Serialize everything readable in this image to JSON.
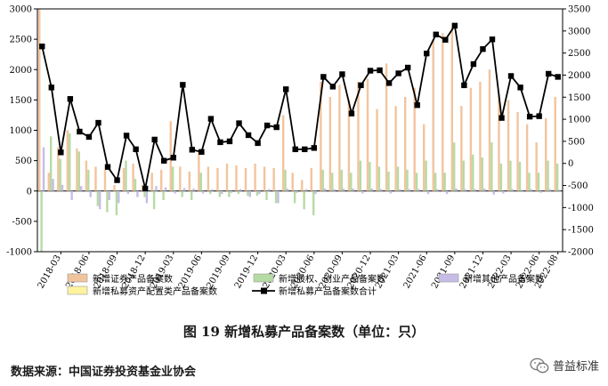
{
  "caption": "图 19   新增私募产品备案数（单位：只）",
  "source": "数据来源：中国证券投资基金业协会",
  "watermark": "普益标准",
  "colors": {
    "securities": "#f2c49d",
    "equity": "#b6dba3",
    "other": "#c7bce6",
    "asset_allocation": "#fff3a0",
    "total": "#000000"
  },
  "chart_data": {
    "type": "bar",
    "title": "",
    "xlabel": "",
    "ylabel": "",
    "ylim_left": [
      -1000,
      3000
    ],
    "ylim_right": [
      -2000,
      3500
    ],
    "yticks_left": [
      -1000,
      -500,
      0,
      500,
      1000,
      1500,
      2000,
      2500,
      3000
    ],
    "yticks_right": [
      -2000,
      -1500,
      -1000,
      -500,
      0,
      500,
      1000,
      1500,
      2000,
      2500,
      3000,
      3500
    ],
    "x_tick_labels": [
      "2018-03",
      "2018-06",
      "2018-09",
      "2018-12",
      "2019-03",
      "2019-06",
      "2019-09",
      "2019-12",
      "2020-03",
      "2020-06",
      "2020-09",
      "2020-12",
      "2021-03",
      "2021-06",
      "2021-09",
      "2021-12",
      "2022-03",
      "2022-06",
      "2022-08"
    ],
    "categories": [
      "2018-01",
      "2018-02",
      "2018-03",
      "2018-04",
      "2018-05",
      "2018-06",
      "2018-07",
      "2018-08",
      "2018-09",
      "2018-10",
      "2018-11",
      "2018-12",
      "2019-01",
      "2019-02",
      "2019-03",
      "2019-04",
      "2019-05",
      "2019-06",
      "2019-07",
      "2019-08",
      "2019-09",
      "2019-10",
      "2019-11",
      "2019-12",
      "2020-01",
      "2020-02",
      "2020-03",
      "2020-04",
      "2020-05",
      "2020-06",
      "2020-07",
      "2020-08",
      "2020-09",
      "2020-10",
      "2020-11",
      "2020-12",
      "2021-01",
      "2021-02",
      "2021-03",
      "2021-04",
      "2021-05",
      "2021-06",
      "2021-07",
      "2021-08",
      "2021-09",
      "2021-10",
      "2021-11",
      "2021-12",
      "2022-01",
      "2022-02",
      "2022-03",
      "2022-04",
      "2022-05",
      "2022-06",
      "2022-07",
      "2022-08"
    ],
    "legend_position": "bottom",
    "series": [
      {
        "name": "新增证券产品备案数",
        "axis": "left",
        "kind": "bar",
        "color": "#f2c49d",
        "values": [
          3000,
          300,
          720,
          1000,
          700,
          500,
          400,
          350,
          100,
          380,
          450,
          100,
          300,
          350,
          1150,
          400,
          320,
          680,
          400,
          380,
          450,
          420,
          380,
          450,
          400,
          380,
          1250,
          300,
          180,
          380,
          1800,
          1550,
          1750,
          1500,
          1800,
          1850,
          1350,
          2100,
          1400,
          1550,
          1700,
          1100,
          2500,
          2600,
          2700,
          1400,
          1700,
          1800,
          2000,
          1600,
          1500,
          1300,
          1100,
          800,
          1200,
          1550
        ]
      },
      {
        "name": "新增股权、创业产品备案数",
        "axis": "left",
        "kind": "bar",
        "color": "#b6dba3",
        "values": [
          -1000,
          900,
          530,
          950,
          650,
          350,
          -250,
          -350,
          -400,
          500,
          200,
          -100,
          -300,
          -150,
          400,
          -100,
          -150,
          300,
          -50,
          -100,
          -100,
          -50,
          -80,
          -80,
          -150,
          -200,
          350,
          -200,
          -300,
          -400,
          350,
          300,
          350,
          300,
          500,
          480,
          400,
          320,
          400,
          350,
          300,
          500,
          300,
          300,
          800,
          500,
          600,
          550,
          800,
          450,
          500,
          480,
          300,
          300,
          500,
          450
        ]
      },
      {
        "name": "新增其他产品备案数",
        "axis": "left",
        "kind": "bar",
        "color": "#c7bce6",
        "values": [
          720,
          200,
          100,
          -150,
          80,
          -100,
          -300,
          -150,
          -200,
          -50,
          -100,
          -200,
          80,
          60,
          -40,
          50,
          40,
          -40,
          30,
          -50,
          -30,
          30,
          -100,
          -50,
          30,
          -200,
          40,
          -30,
          30,
          -50,
          40,
          30,
          40,
          40,
          -40,
          40,
          30,
          -40,
          30,
          30,
          30,
          -50,
          30,
          -50,
          40,
          30,
          30,
          40,
          -60,
          -40,
          30,
          20,
          30,
          -30,
          30,
          20
        ]
      },
      {
        "name": "新增私募资产配置类产品备案数",
        "axis": "left",
        "kind": "bar",
        "color": "#fff3a0",
        "values": [
          0,
          0,
          0,
          0,
          0,
          0,
          0,
          0,
          0,
          0,
          0,
          0,
          0,
          0,
          0,
          0,
          0,
          0,
          0,
          0,
          0,
          0,
          0,
          0,
          0,
          0,
          0,
          0,
          0,
          0,
          0,
          0,
          0,
          0,
          0,
          0,
          0,
          0,
          0,
          0,
          0,
          0,
          0,
          0,
          0,
          0,
          0,
          0,
          0,
          0,
          0,
          0,
          0,
          0,
          0,
          0
        ]
      },
      {
        "name": "新增私募产品备案数合计",
        "axis": "right",
        "kind": "line",
        "color": "#000000",
        "values": [
          2650,
          1720,
          250,
          1460,
          720,
          600,
          920,
          -80,
          -380,
          630,
          320,
          -570,
          540,
          60,
          130,
          1780,
          310,
          260,
          1010,
          480,
          500,
          910,
          640,
          460,
          860,
          820,
          1680,
          320,
          320,
          350,
          1960,
          1740,
          2020,
          1130,
          1770,
          2100,
          2110,
          1820,
          2040,
          2170,
          1320,
          2490,
          2920,
          2800,
          3120,
          1770,
          2250,
          2590,
          2810,
          1030,
          1980,
          1720,
          1060,
          1070,
          2030,
          1960
        ]
      }
    ]
  }
}
